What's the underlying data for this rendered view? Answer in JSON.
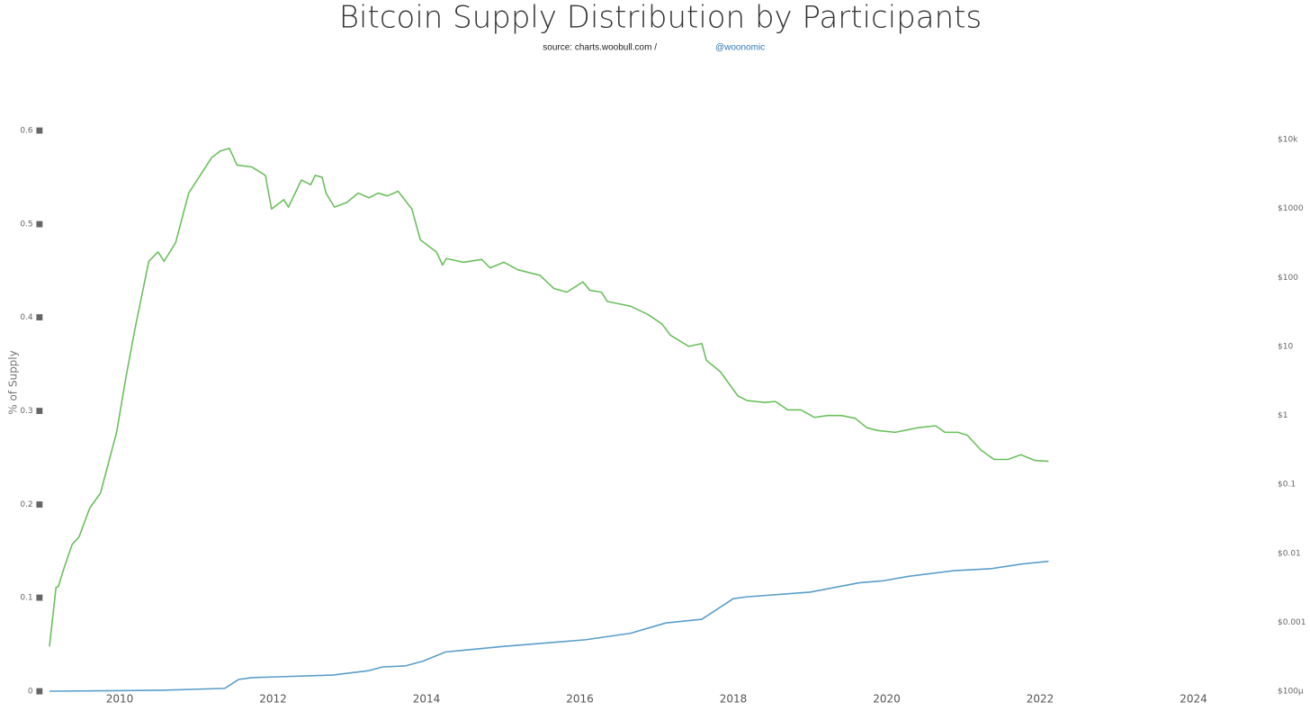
{
  "chart_data": {
    "type": "line",
    "title": "Bitcoin Supply Distribution by Participants",
    "subtitle": "source: charts.woobull.com /",
    "subtitle_link": "@woonomic",
    "ylabel": "% of Supply",
    "xlim": [
      2009,
      2025
    ],
    "xticks": [
      2010,
      2012,
      2014,
      2016,
      2018,
      2020,
      2022,
      2024
    ],
    "ylim": [
      0,
      0.6
    ],
    "yticks": [
      {
        "value": 0,
        "label": "0 ■"
      },
      {
        "value": 0.1,
        "label": "0.1 ■"
      },
      {
        "value": 0.2,
        "label": "0.2 ■"
      },
      {
        "value": 0.3,
        "label": "0.3 ■"
      },
      {
        "value": 0.4,
        "label": "0.4 ■"
      },
      {
        "value": 0.5,
        "label": "0.5 ■"
      },
      {
        "value": 0.6,
        "label": "0.6 ■"
      }
    ],
    "y2log": true,
    "y2lim": [
      0.0001,
      10000
    ],
    "y2ticks": [
      {
        "value": 0.0001,
        "label": "$100µ"
      },
      {
        "value": 0.001,
        "label": "$0.001"
      },
      {
        "value": 0.01,
        "label": "$0.01"
      },
      {
        "value": 0.1,
        "label": "$0.1"
      },
      {
        "value": 1,
        "label": "$1"
      },
      {
        "value": 10,
        "label": "$10"
      },
      {
        "value": 100,
        "label": "$100"
      },
      {
        "value": 1000,
        "label": "$1000"
      },
      {
        "value": 10000,
        "label": "$10k"
      }
    ],
    "series": [
      {
        "color": "#6cbf5e",
        "x": [
          2009.085,
          2009.17,
          2009.2,
          2009.28,
          2009.38,
          2009.47,
          2009.61,
          2009.75,
          2009.96,
          2010.08,
          2010.2,
          2010.38,
          2010.5,
          2010.58,
          2010.73,
          2010.9,
          2011.2,
          2011.31,
          2011.43,
          2011.53,
          2011.72,
          2011.9,
          2011.98,
          2012.14,
          2012.2,
          2012.37,
          2012.49,
          2012.55,
          2012.64,
          2012.69,
          2012.8,
          2012.96,
          2013.11,
          2013.25,
          2013.37,
          2013.49,
          2013.63,
          2013.81,
          2013.92,
          2014.13,
          2014.21,
          2014.26,
          2014.48,
          2014.72,
          2014.83,
          2015.01,
          2015.19,
          2015.48,
          2015.66,
          2015.83,
          2016.04,
          2016.13,
          2016.28,
          2016.36,
          2016.54,
          2016.66,
          2016.89,
          2017.07,
          2017.18,
          2017.42,
          2017.59,
          2017.65,
          2017.83,
          2018.06,
          2018.18,
          2018.41,
          2018.55,
          2018.71,
          2018.88,
          2019.06,
          2019.23,
          2019.41,
          2019.59,
          2019.74,
          2019.88,
          2020.11,
          2020.41,
          2020.64,
          2020.76,
          2020.93,
          2021.05,
          2021.23,
          2021.4,
          2021.58,
          2021.75,
          2021.93,
          2022.11
        ],
        "values": [
          0.048,
          0.111,
          0.112,
          0.133,
          0.157,
          0.165,
          0.196,
          0.212,
          0.277,
          0.335,
          0.388,
          0.46,
          0.47,
          0.46,
          0.48,
          0.533,
          0.571,
          0.578,
          0.581,
          0.563,
          0.561,
          0.552,
          0.516,
          0.526,
          0.518,
          0.547,
          0.542,
          0.552,
          0.55,
          0.533,
          0.518,
          0.523,
          0.533,
          0.528,
          0.533,
          0.53,
          0.535,
          0.516,
          0.483,
          0.47,
          0.456,
          0.463,
          0.459,
          0.462,
          0.453,
          0.459,
          0.451,
          0.445,
          0.431,
          0.427,
          0.438,
          0.429,
          0.427,
          0.417,
          0.414,
          0.412,
          0.403,
          0.393,
          0.381,
          0.369,
          0.372,
          0.354,
          0.342,
          0.316,
          0.311,
          0.309,
          0.31,
          0.301,
          0.301,
          0.293,
          0.295,
          0.295,
          0.292,
          0.282,
          0.279,
          0.277,
          0.282,
          0.284,
          0.277,
          0.277,
          0.274,
          0.258,
          0.248,
          0.248,
          0.253,
          0.247,
          0.246
        ]
      },
      {
        "color": "#5a9ec9",
        "x": [
          2009.085,
          2010.55,
          2011.37,
          2011.55,
          2011.72,
          2012.07,
          2012.78,
          2013.25,
          2013.43,
          2013.72,
          2013.95,
          2014.25,
          2015.01,
          2016.07,
          2016.66,
          2017.12,
          2017.59,
          2018.0,
          2018.18,
          2019.0,
          2019.64,
          2019.94,
          2020.29,
          2020.88,
          2021.35,
          2021.75,
          2022.11
        ],
        "values": [
          0,
          0.001,
          0.003,
          0.0125,
          0.0145,
          0.0154,
          0.0173,
          0.022,
          0.026,
          0.027,
          0.032,
          0.042,
          0.048,
          0.055,
          0.062,
          0.073,
          0.077,
          0.099,
          0.101,
          0.106,
          0.116,
          0.118,
          0.123,
          0.129,
          0.131,
          0.136,
          0.139
        ]
      }
    ]
  }
}
